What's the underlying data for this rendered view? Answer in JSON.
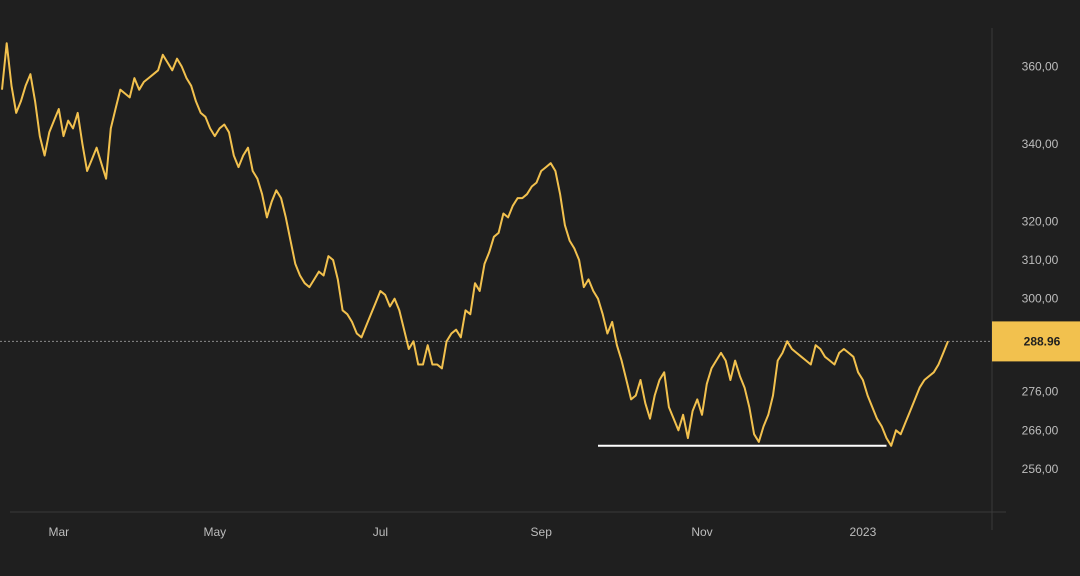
{
  "chart_data": {
    "type": "line",
    "ylim": [
      248,
      372
    ],
    "grid": false,
    "y_ticks": [
      {
        "value": 360,
        "label": "360,00"
      },
      {
        "value": 340,
        "label": "340,00"
      },
      {
        "value": 320,
        "label": "320,00"
      },
      {
        "value": 310,
        "label": "310,00"
      },
      {
        "value": 300,
        "label": "300,00"
      },
      {
        "value": 276,
        "label": "276,00"
      },
      {
        "value": 266,
        "label": "266,00"
      },
      {
        "value": 256,
        "label": "256,00"
      }
    ],
    "x_ticks": [
      {
        "index": 12,
        "label": "Mar"
      },
      {
        "index": 45,
        "label": "May"
      },
      {
        "index": 80,
        "label": "Jul"
      },
      {
        "index": 114,
        "label": "Sep"
      },
      {
        "index": 148,
        "label": "Nov"
      },
      {
        "index": 182,
        "label": "2023"
      }
    ],
    "last_price": {
      "value": 288.96,
      "label": "288.96"
    },
    "support_level": {
      "value": 262,
      "from_index": 126,
      "to_index": 187
    },
    "series": [
      {
        "color": "#f2c14e",
        "values": [
          354,
          366,
          355,
          348,
          351,
          355,
          358,
          351,
          342,
          337,
          343,
          346,
          349,
          342,
          346,
          344,
          348,
          340,
          333,
          336,
          339,
          335,
          331,
          344,
          349,
          354,
          353,
          352,
          357,
          354,
          356,
          357,
          358,
          359,
          363,
          361,
          359,
          362,
          360,
          357,
          355,
          351,
          348,
          347,
          344,
          342,
          344,
          345,
          343,
          337,
          334,
          337,
          339,
          333,
          331,
          327,
          321,
          325,
          328,
          326,
          321,
          315,
          309,
          306,
          304,
          303,
          305,
          307,
          306,
          311,
          310,
          305,
          297,
          296,
          294,
          291,
          290,
          293,
          296,
          299,
          302,
          301,
          298,
          300,
          297,
          292,
          287,
          289,
          283,
          283,
          288,
          283,
          283,
          282,
          289,
          291,
          292,
          290,
          297,
          296,
          304,
          302,
          309,
          312,
          316,
          317,
          322,
          321,
          324,
          326,
          326,
          327,
          329,
          330,
          333,
          334,
          335,
          333,
          327,
          319,
          315,
          313,
          310,
          303,
          305,
          302,
          300,
          296,
          291,
          294,
          288,
          284,
          279,
          274,
          275,
          279,
          273,
          269,
          275,
          279,
          281,
          272,
          269,
          266,
          270,
          264,
          271,
          274,
          270,
          278,
          282,
          284,
          286,
          284,
          279,
          284,
          280,
          277,
          272,
          265,
          263,
          267,
          270,
          275,
          284,
          286,
          289,
          287,
          286,
          285,
          284,
          283,
          288,
          287,
          285,
          284,
          283,
          286,
          287,
          286,
          285,
          281,
          279,
          275,
          272,
          269,
          267,
          264,
          262,
          266,
          265,
          268,
          271,
          274,
          277,
          279,
          280,
          281,
          283,
          286,
          289
        ]
      }
    ]
  }
}
